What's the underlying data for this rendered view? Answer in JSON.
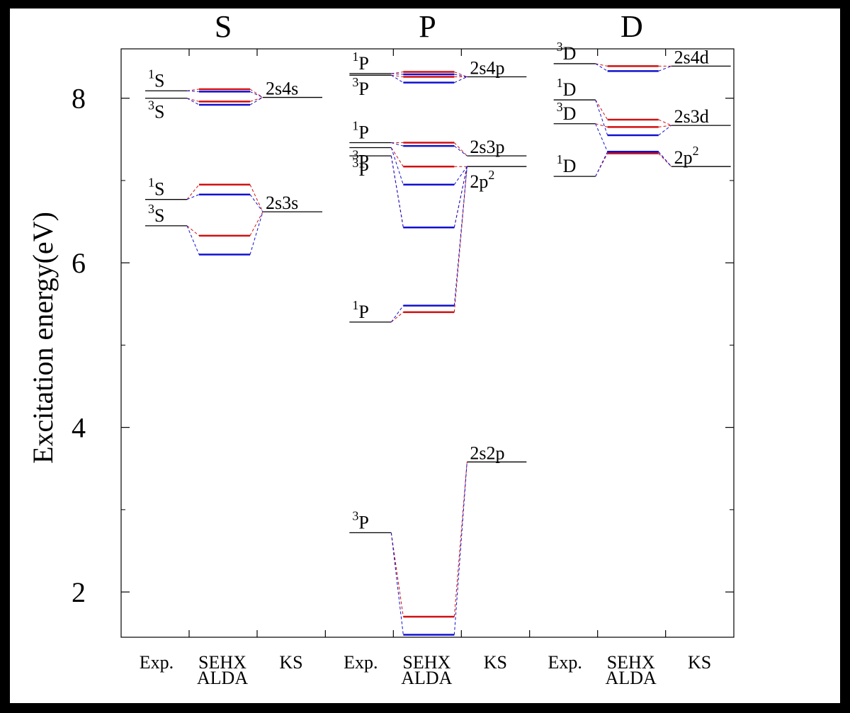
{
  "chart_data": {
    "type": "level-diagram",
    "title": "",
    "ylabel": "Excitation energy(eV)",
    "ylim": [
      1.45,
      8.6
    ],
    "yticks": [
      2,
      4,
      6,
      8
    ],
    "colors": {
      "sehx": "#d01010",
      "alda": "#1010d0",
      "exp": "#000000",
      "ks": "#000000"
    },
    "panels": [
      {
        "label": "S",
        "columns": [
          "Exp.",
          "SEHX",
          "ALDA",
          "KS"
        ],
        "exp": [
          {
            "term": "1S",
            "sup": "1",
            "base": "S",
            "value": 8.09
          },
          {
            "term": "3S",
            "sup": "3",
            "base": "S",
            "value": 8.0
          },
          {
            "term": "1S",
            "sup": "1",
            "base": "S",
            "value": 6.77
          },
          {
            "term": "3S",
            "sup": "3",
            "base": "S",
            "value": 6.45
          }
        ],
        "ks": [
          {
            "base": "2s4s",
            "sup": "",
            "value": 8.01
          },
          {
            "base": "2s3s",
            "sup": "",
            "value": 6.62
          }
        ],
        "sehx": [
          8.11,
          7.96,
          6.95,
          6.33
        ],
        "alda": [
          8.08,
          7.92,
          6.83,
          6.1
        ]
      },
      {
        "label": "P",
        "columns": [
          "Exp.",
          "SEHX",
          "ALDA",
          "KS"
        ],
        "exp": [
          {
            "term": "1P",
            "sup": "1",
            "base": "P",
            "value": 8.3
          },
          {
            "term": "3P",
            "sup": "3",
            "base": "P",
            "value": 8.28
          },
          {
            "term": "1P",
            "sup": "1",
            "base": "P",
            "value": 7.46
          },
          {
            "term": "3P",
            "sup": "3",
            "base": "P",
            "value": 7.4
          },
          {
            "term": "3P",
            "sup": "3",
            "base": "P",
            "value": 7.3
          },
          {
            "term": "1P",
            "sup": "1",
            "base": "P",
            "value": 5.28
          },
          {
            "term": "3P",
            "sup": "3",
            "base": "P",
            "value": 2.72
          }
        ],
        "ks": [
          {
            "base": "2s4p",
            "sup": "",
            "value": 8.26
          },
          {
            "base": "2s3p",
            "sup": "",
            "value": 7.3
          },
          {
            "base": "2p",
            "sup": "2",
            "value": 7.17
          },
          {
            "base": "2s2p",
            "sup": "",
            "value": 3.58
          }
        ],
        "sehx": [
          8.32,
          8.26,
          7.46,
          7.17,
          6.43,
          5.4,
          1.7
        ],
        "alda": [
          8.29,
          8.19,
          7.42,
          6.95,
          6.43,
          5.48,
          1.48
        ]
      },
      {
        "label": "D",
        "columns": [
          "Exp.",
          "SEHX",
          "ALDA",
          "KS"
        ],
        "exp": [
          {
            "term": "3D",
            "sup": "3",
            "base": "D",
            "value": 8.42
          },
          {
            "term": "1D",
            "sup": "1",
            "base": "D",
            "value": 7.98
          },
          {
            "term": "3D",
            "sup": "3",
            "base": "D",
            "value": 7.69
          },
          {
            "term": "1D",
            "sup": "1",
            "base": "D",
            "value": 7.05
          }
        ],
        "ks": [
          {
            "base": "2s4d",
            "sup": "",
            "value": 8.39
          },
          {
            "base": "2s3d",
            "sup": "",
            "value": 7.67
          },
          {
            "base": "2p",
            "sup": "2",
            "value": 7.17
          }
        ],
        "sehx": [
          8.39,
          7.74,
          7.65,
          7.33
        ],
        "alda": [
          8.33,
          7.55,
          7.35,
          7.35
        ]
      }
    ]
  }
}
